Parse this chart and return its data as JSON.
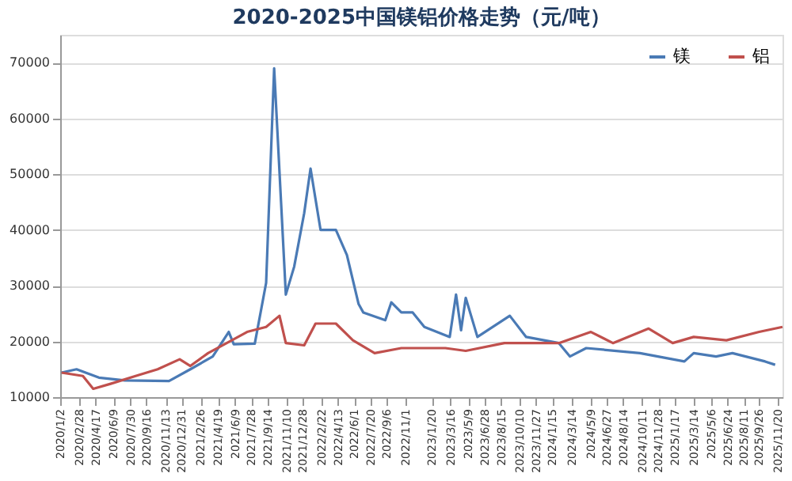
{
  "chart_data": {
    "type": "line",
    "title": "2020-2025中国镁铝价格走势（元/吨）",
    "xlim": [
      "2020-01-02",
      "2025-12-05"
    ],
    "xticks": [
      {
        "value": "2020-01-02",
        "label": "2020/1/2"
      },
      {
        "value": "2020-02-28",
        "label": "2020/2/28"
      },
      {
        "value": "2020-04-17",
        "label": "2020/4/17"
      },
      {
        "value": "2020-06-09",
        "label": "2020/6/9"
      },
      {
        "value": "2020-07-30",
        "label": "2020/7/30"
      },
      {
        "value": "2020-09-16",
        "label": "2020/9/16"
      },
      {
        "value": "2020-11-13",
        "label": "2020/11/13"
      },
      {
        "value": "2020-12-31",
        "label": "2020/12/31"
      },
      {
        "value": "2021-02-26",
        "label": "2021/2/26"
      },
      {
        "value": "2021-04-19",
        "label": "2021/4/19"
      },
      {
        "value": "2021-06-09",
        "label": "2021/6/9"
      },
      {
        "value": "2021-07-28",
        "label": "2021/7/28"
      },
      {
        "value": "2021-09-14",
        "label": "2021/9/14"
      },
      {
        "value": "2021-11-10",
        "label": "2021/11/10"
      },
      {
        "value": "2021-12-28",
        "label": "2021/12/28"
      },
      {
        "value": "2022-02-22",
        "label": "2022/2/22"
      },
      {
        "value": "2022-04-13",
        "label": "2022/4/13"
      },
      {
        "value": "2022-06-01",
        "label": "2022/6/1"
      },
      {
        "value": "2022-07-20",
        "label": "2022/7/20"
      },
      {
        "value": "2022-09-06",
        "label": "2022/9/6"
      },
      {
        "value": "2022-11-01",
        "label": "2022/11/1"
      },
      {
        "value": "2023-01-20",
        "label": "2023/1/20"
      },
      {
        "value": "2023-03-16",
        "label": "2023/3/16"
      },
      {
        "value": "2023-05-09",
        "label": "2023/5/9"
      },
      {
        "value": "2023-06-28",
        "label": "2023/6/28"
      },
      {
        "value": "2023-08-15",
        "label": "2023/8/15"
      },
      {
        "value": "2023-10-10",
        "label": "2023/10/10"
      },
      {
        "value": "2023-11-27",
        "label": "2023/11/27"
      },
      {
        "value": "2024-01-15",
        "label": "2024/1/15"
      },
      {
        "value": "2024-03-14",
        "label": "2024/3/14"
      },
      {
        "value": "2024-05-09",
        "label": "2024/5/9"
      },
      {
        "value": "2024-06-27",
        "label": "2024/6/27"
      },
      {
        "value": "2024-08-14",
        "label": "2024/8/14"
      },
      {
        "value": "2024-10-11",
        "label": "2024/10/11"
      },
      {
        "value": "2024-11-28",
        "label": "2024/11/28"
      },
      {
        "value": "2025-01-17",
        "label": "2025/1/17"
      },
      {
        "value": "2025-03-14",
        "label": "2025/3/14"
      },
      {
        "value": "2025-05-06",
        "label": "2025/5/6"
      },
      {
        "value": "2025-06-24",
        "label": "2025/6/24"
      },
      {
        "value": "2025-08-11",
        "label": "2025/8/11"
      },
      {
        "value": "2025-09-26",
        "label": "2025/9/26"
      },
      {
        "value": "2025-11-20",
        "label": "2025/11/20"
      }
    ],
    "ylim": [
      10000,
      75000
    ],
    "yticks": [
      10000,
      20000,
      30000,
      40000,
      50000,
      60000,
      70000
    ],
    "grid": "y",
    "legend": "top right",
    "marker": "none",
    "line_style": "solid",
    "series": [
      {
        "name": "镁",
        "color": "#4a7ab5",
        "x": [
          "2020-01-06",
          "2020-02-20",
          "2020-04-27",
          "2020-07-14",
          "2020-11-23",
          "2021-01-26",
          "2021-04-03",
          "2021-05-21",
          "2021-06-05",
          "2021-08-07",
          "2021-09-10",
          "2021-10-04",
          "2021-11-08",
          "2021-12-03",
          "2022-01-02",
          "2022-01-21",
          "2022-02-20",
          "2022-04-07",
          "2022-05-10",
          "2022-06-14",
          "2022-06-28",
          "2022-09-02",
          "2022-09-20",
          "2022-10-20",
          "2022-11-23",
          "2022-12-28",
          "2023-03-14",
          "2023-04-02",
          "2023-04-17",
          "2023-05-01",
          "2023-06-05",
          "2023-09-10",
          "2023-10-29",
          "2024-02-04",
          "2024-03-08",
          "2024-04-26",
          "2024-10-04",
          "2025-02-14",
          "2025-03-14",
          "2025-05-20",
          "2025-07-08",
          "2025-10-14",
          "2025-11-13"
        ],
        "values": [
          14400,
          15000,
          13500,
          13000,
          12900,
          15000,
          17300,
          21700,
          19500,
          19600,
          30500,
          69000,
          28400,
          33400,
          43000,
          51000,
          40000,
          40000,
          35500,
          26700,
          25200,
          23800,
          27000,
          25200,
          25200,
          22600,
          20800,
          28400,
          22000,
          27800,
          20800,
          24600,
          20800,
          19700,
          17300,
          18800,
          17900,
          16400,
          17900,
          17300,
          17900,
          16400,
          15800
        ]
      },
      {
        "name": "铝",
        "color": "#c0504d",
        "x": [
          "2020-01-06",
          "2020-03-10",
          "2020-04-10",
          "2020-06-01",
          "2020-08-15",
          "2020-10-20",
          "2020-12-25",
          "2021-01-26",
          "2021-03-20",
          "2021-05-15",
          "2021-07-15",
          "2021-09-10",
          "2021-10-20",
          "2021-11-08",
          "2022-01-02",
          "2022-02-05",
          "2022-04-07",
          "2022-05-28",
          "2022-08-01",
          "2022-10-20",
          "2023-03-01",
          "2023-05-01",
          "2023-08-25",
          "2024-02-04",
          "2024-05-10",
          "2024-07-15",
          "2024-10-30",
          "2025-01-10",
          "2025-03-14",
          "2025-06-20",
          "2025-09-26",
          "2025-12-05"
        ],
        "values": [
          14400,
          13800,
          11500,
          12400,
          13800,
          15000,
          16800,
          15600,
          17900,
          19700,
          21700,
          22600,
          24600,
          19700,
          19300,
          23200,
          23200,
          20200,
          17900,
          18800,
          18800,
          18300,
          19700,
          19700,
          21700,
          19700,
          22300,
          19700,
          20800,
          20200,
          21700,
          22600
        ]
      }
    ]
  }
}
